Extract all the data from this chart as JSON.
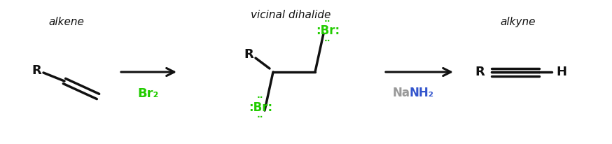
{
  "bg_color": "#ffffff",
  "label_br2": "Br₂",
  "label_nanh2_na": "Na",
  "label_nanh2_nh2": "NH₂",
  "label_alkene": "alkene",
  "label_vicinal": "vicinal dihalide",
  "label_alkyne": "alkyne",
  "green_color": "#22cc00",
  "gray_color": "#999999",
  "black_color": "#111111",
  "blue_color": "#3355cc"
}
